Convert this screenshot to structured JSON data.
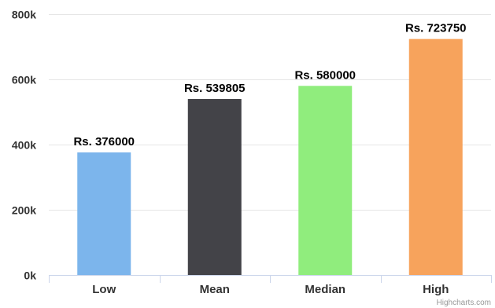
{
  "chart_data": {
    "type": "bar",
    "title": "",
    "xlabel": "",
    "ylabel": "",
    "categories": [
      "Low",
      "Mean",
      "Median",
      "High"
    ],
    "values": [
      376000,
      539805,
      580000,
      723750
    ],
    "data_labels": [
      "Rs. 376000",
      "Rs. 539805",
      "Rs. 580000",
      "Rs. 723750"
    ],
    "colors": [
      "#7cb5ec",
      "#434348",
      "#90ed7d",
      "#f7a35c"
    ],
    "ylim": [
      0,
      800000
    ],
    "y_ticks": [
      0,
      200000,
      400000,
      600000,
      800000
    ],
    "y_tick_labels": [
      "0k",
      "200k",
      "400k",
      "600k",
      "800k"
    ],
    "grid": true,
    "legend": "none"
  },
  "credits": "Highcharts.com",
  "colors": {
    "grid": "#e6e6e6",
    "axis": "#ccd6eb"
  }
}
